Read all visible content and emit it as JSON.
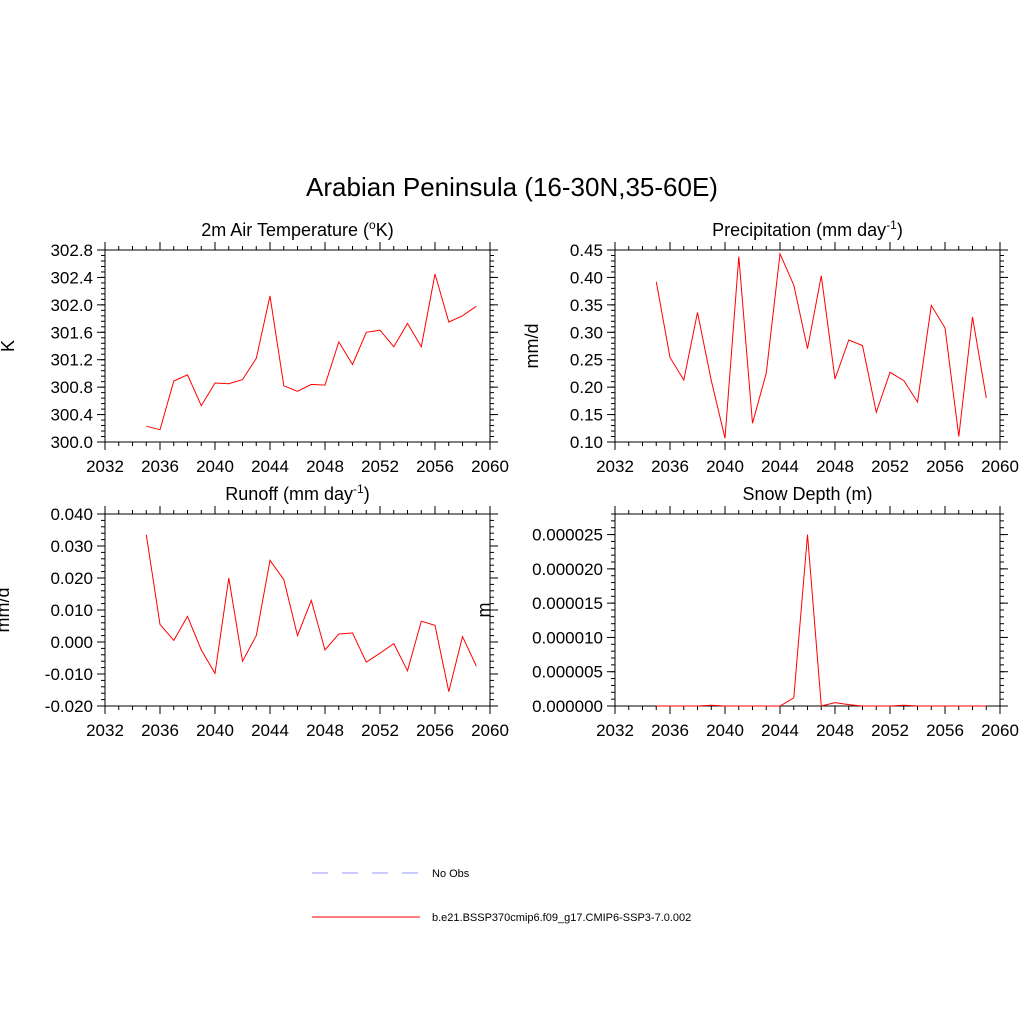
{
  "figure": {
    "title": "Arabian Peninsula (16-30N,35-60E)"
  },
  "legend": {
    "placement": "bottom-center",
    "entries": [
      {
        "label": "No Obs",
        "color": "#9999ff",
        "style": "dashed"
      },
      {
        "label": "b.e21.BSSP370cmip6.f09_g17.CMIP6-SSP3-7.0.002",
        "color": "#ff0000",
        "style": "solid"
      }
    ]
  },
  "chart_data": [
    {
      "type": "line",
      "title": "2m Air Temperature (",
      "title_sup": "o",
      "title_after": "K)",
      "ylabel": "K",
      "xlabel": "",
      "xlim": [
        2032,
        2060
      ],
      "ylim": [
        300.0,
        302.8
      ],
      "xticks": [
        2032,
        2036,
        2040,
        2044,
        2048,
        2052,
        2056,
        2060
      ],
      "yticks": [
        "300.0",
        "300.4",
        "300.8",
        "301.2",
        "301.6",
        "302.0",
        "302.4",
        "302.8"
      ],
      "grid": false,
      "color": "#ff0000",
      "x": [
        2035,
        2036,
        2037,
        2038,
        2039,
        2040,
        2041,
        2042,
        2043,
        2044,
        2045,
        2046,
        2047,
        2048,
        2049,
        2050,
        2051,
        2052,
        2053,
        2054,
        2055,
        2056,
        2057,
        2058,
        2059
      ],
      "y": [
        300.23,
        300.18,
        300.89,
        300.98,
        300.53,
        300.86,
        300.85,
        300.91,
        301.22,
        302.13,
        300.82,
        300.74,
        300.84,
        300.83,
        301.46,
        301.13,
        301.6,
        301.63,
        301.39,
        301.73,
        301.39,
        302.45,
        301.75,
        301.84,
        301.98
      ]
    },
    {
      "type": "line",
      "title": "Precipitation (mm day",
      "title_sup": "-1",
      "title_after": ")",
      "ylabel": "mm/d",
      "xlabel": "",
      "xlim": [
        2032,
        2060
      ],
      "ylim": [
        0.1,
        0.45
      ],
      "xticks": [
        2032,
        2036,
        2040,
        2044,
        2048,
        2052,
        2056,
        2060
      ],
      "yticks": [
        "0.10",
        "0.15",
        "0.20",
        "0.25",
        "0.30",
        "0.35",
        "0.40",
        "0.45"
      ],
      "grid": false,
      "color": "#ff0000",
      "x": [
        2035,
        2036,
        2037,
        2038,
        2039,
        2040,
        2041,
        2042,
        2043,
        2044,
        2045,
        2046,
        2047,
        2048,
        2049,
        2050,
        2051,
        2052,
        2053,
        2054,
        2055,
        2056,
        2057,
        2058,
        2059
      ],
      "y": [
        0.392,
        0.254,
        0.213,
        0.336,
        0.212,
        0.107,
        0.438,
        0.134,
        0.226,
        0.443,
        0.386,
        0.27,
        0.403,
        0.215,
        0.286,
        0.276,
        0.154,
        0.227,
        0.212,
        0.173,
        0.349,
        0.308,
        0.11,
        0.328,
        0.18
      ]
    },
    {
      "type": "line",
      "title": "Runoff (mm day",
      "title_sup": "-1",
      "title_after": ")",
      "ylabel": "mm/d",
      "xlabel": "",
      "xlim": [
        2032,
        2060
      ],
      "ylim": [
        -0.02,
        0.04
      ],
      "xticks": [
        2032,
        2036,
        2040,
        2044,
        2048,
        2052,
        2056,
        2060
      ],
      "yticks": [
        "-0.020",
        "-0.010",
        "0.000",
        "0.010",
        "0.020",
        "0.030",
        "0.040"
      ],
      "grid": false,
      "color": "#ff0000",
      "x": [
        2035,
        2036,
        2037,
        2038,
        2039,
        2040,
        2041,
        2042,
        2043,
        2044,
        2045,
        2046,
        2047,
        2048,
        2049,
        2050,
        2051,
        2052,
        2053,
        2054,
        2055,
        2056,
        2057,
        2058,
        2059
      ],
      "y": [
        0.0335,
        0.0055,
        0.0005,
        0.008,
        -0.0025,
        -0.0098,
        0.02,
        -0.006,
        0.002,
        0.0255,
        0.0195,
        0.002,
        0.013,
        -0.0025,
        0.0025,
        0.0028,
        -0.0063,
        -0.0035,
        -0.0005,
        -0.009,
        0.0065,
        0.0052,
        -0.0155,
        0.0017,
        -0.0075
      ]
    },
    {
      "type": "line",
      "title": "Snow Depth (m)",
      "title_sup": "",
      "title_after": "",
      "ylabel": "m",
      "xlabel": "",
      "xlim": [
        2032,
        2060
      ],
      "ylim": [
        0.0,
        2.8e-05
      ],
      "xticks": [
        2032,
        2036,
        2040,
        2044,
        2048,
        2052,
        2056,
        2060
      ],
      "ytick_values": [
        0.0,
        5e-06,
        1e-05,
        1.5e-05,
        2e-05,
        2.5e-05
      ],
      "yticks": [
        "0.000000",
        "0.000005",
        "0.000010",
        "0.000015",
        "0.000020",
        "0.000025"
      ],
      "grid": false,
      "color": "#ff0000",
      "x": [
        2035,
        2036,
        2037,
        2038,
        2039,
        2040,
        2041,
        2042,
        2043,
        2044,
        2045,
        2046,
        2047,
        2048,
        2049,
        2050,
        2051,
        2052,
        2053,
        2054,
        2055,
        2056,
        2057,
        2058,
        2059
      ],
      "y": [
        0.0,
        0.0,
        0.0,
        0.0,
        1e-07,
        0.0,
        0.0,
        0.0,
        0.0,
        0.0,
        1.2e-06,
        2.5e-05,
        0.0,
        5e-07,
        2e-07,
        0.0,
        0.0,
        0.0,
        1e-07,
        0.0,
        0.0,
        0.0,
        0.0,
        0.0,
        0.0
      ]
    }
  ]
}
